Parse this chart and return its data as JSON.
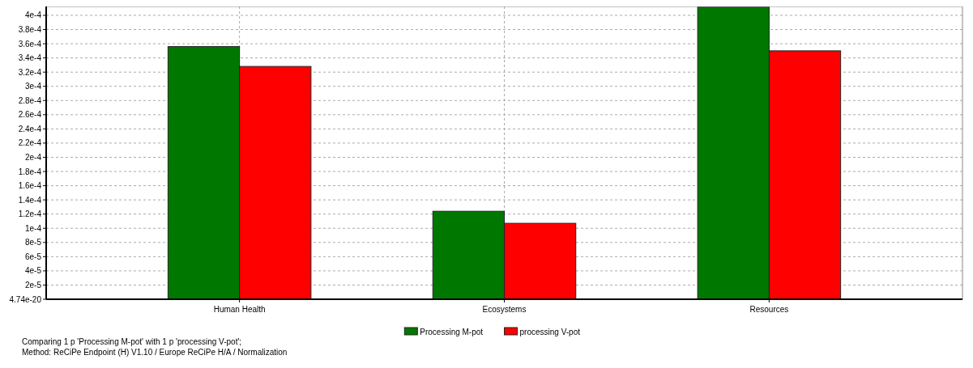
{
  "chart_data": {
    "type": "bar",
    "categories": [
      "Human Health",
      "Ecosystems",
      "Resources"
    ],
    "series": [
      {
        "name": "Processing M-pot",
        "color": "#007800",
        "values": [
          0.000356,
          0.000124,
          0.000412
        ]
      },
      {
        "name": "processing V-pot",
        "color": "#ff0000",
        "values": [
          0.000328,
          0.000107,
          0.00035
        ]
      }
    ],
    "ylim": [
      0,
      0.0004125
    ],
    "yticks": [
      {
        "value": 4.74e-20,
        "label": "4.74e-20"
      },
      {
        "value": 2e-05,
        "label": "2e-5"
      },
      {
        "value": 4e-05,
        "label": "4e-5"
      },
      {
        "value": 6e-05,
        "label": "6e-5"
      },
      {
        "value": 8e-05,
        "label": "8e-5"
      },
      {
        "value": 0.0001,
        "label": "1e-4"
      },
      {
        "value": 0.00012,
        "label": "1.2e-4"
      },
      {
        "value": 0.00014,
        "label": "1.4e-4"
      },
      {
        "value": 0.00016,
        "label": "1.6e-4"
      },
      {
        "value": 0.00018,
        "label": "1.8e-4"
      },
      {
        "value": 0.0002,
        "label": "2e-4"
      },
      {
        "value": 0.00022,
        "label": "2.2e-4"
      },
      {
        "value": 0.00024,
        "label": "2.4e-4"
      },
      {
        "value": 0.00026,
        "label": "2.6e-4"
      },
      {
        "value": 0.00028,
        "label": "2.8e-4"
      },
      {
        "value": 0.0003,
        "label": "3e-4"
      },
      {
        "value": 0.00032,
        "label": "3.2e-4"
      },
      {
        "value": 0.00034,
        "label": "3.4e-4"
      },
      {
        "value": 0.00036,
        "label": "3.6e-4"
      },
      {
        "value": 0.00038,
        "label": "3.8e-4"
      },
      {
        "value": 0.0004,
        "label": "4e-4"
      }
    ],
    "grid": true,
    "legend": "bottom",
    "annotations": [
      "Comparing 1 p 'Processing M-pot' with 1 p 'processing V-pot';",
      "Method: ReCiPe Endpoint (H) V1.10 / Europe ReCiPe H/A / Normalization"
    ]
  }
}
